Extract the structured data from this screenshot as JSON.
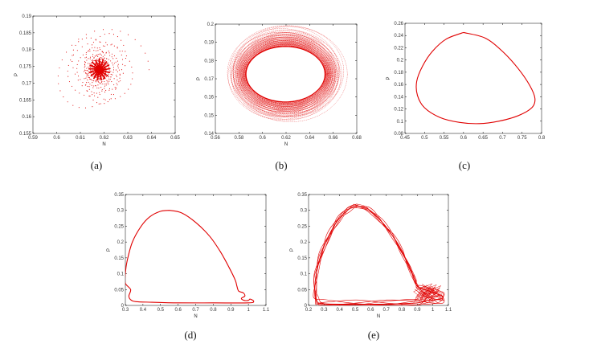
{
  "chart_data": [
    {
      "id": "a",
      "caption": "(a)",
      "type": "scatter",
      "description": "",
      "xlabel": "N",
      "ylabel": "P",
      "xlim": [
        0.59,
        0.65
      ],
      "ylim": [
        0.155,
        0.19
      ],
      "xticks": [
        "0.59",
        "0.6",
        "0.61",
        "0.62",
        "0.63",
        "0.64",
        "0.65"
      ],
      "yticks": [
        "0.155",
        "0.16",
        "0.165",
        "0.17",
        "0.175",
        "0.18",
        "0.185",
        "0.19"
      ],
      "color": "#e00000",
      "spiral": {
        "center": [
          0.618,
          0.174
        ],
        "a_start": 0.021,
        "b_start": 0.0124,
        "decay": 0.023,
        "turns": 26,
        "points_per_turn": 36
      }
    },
    {
      "id": "b",
      "caption": "(b)",
      "type": "line",
      "xlabel": "N",
      "ylabel": "P",
      "xlim": [
        0.56,
        0.68
      ],
      "ylim": [
        0.14,
        0.2
      ],
      "xticks": [
        "0.56",
        "0.58",
        "0.6",
        "0.62",
        "0.64",
        "0.66",
        "0.68"
      ],
      "yticks": [
        "0.14",
        "0.15",
        "0.16",
        "0.17",
        "0.18",
        "0.19",
        "0.2"
      ],
      "color": "#e00000",
      "limit_cycle": {
        "center": [
          0.6195,
          0.1725
        ],
        "a": 0.0335,
        "b": 0.0152
      },
      "outer": {
        "a": 0.0485,
        "b": 0.0262
      },
      "loops": 70
    },
    {
      "id": "c",
      "caption": "(c)",
      "type": "line",
      "xlabel": "",
      "ylabel": "P",
      "xlim": [
        0.45,
        0.8
      ],
      "ylim": [
        0.08,
        0.26
      ],
      "xticks": [
        "0.45",
        "0.5",
        "0.55",
        "0.6",
        "0.65",
        "0.7",
        "0.75",
        "0.8"
      ],
      "yticks": [
        "0.08",
        "0.1",
        "0.12",
        "0.14",
        "0.16",
        "0.18",
        "0.2",
        "0.22",
        "0.24",
        "0.26"
      ],
      "color": "#e00000",
      "curve": [
        [
          0.6,
          0.245
        ],
        [
          0.655,
          0.236
        ],
        [
          0.7,
          0.214
        ],
        [
          0.74,
          0.186
        ],
        [
          0.77,
          0.158
        ],
        [
          0.783,
          0.137
        ],
        [
          0.775,
          0.122
        ],
        [
          0.74,
          0.109
        ],
        [
          0.69,
          0.1
        ],
        [
          0.64,
          0.096
        ],
        [
          0.59,
          0.098
        ],
        [
          0.54,
          0.106
        ],
        [
          0.5,
          0.122
        ],
        [
          0.482,
          0.142
        ],
        [
          0.48,
          0.165
        ],
        [
          0.495,
          0.19
        ],
        [
          0.52,
          0.214
        ],
        [
          0.555,
          0.234
        ],
        [
          0.6,
          0.245
        ]
      ]
    },
    {
      "id": "d",
      "caption": "(d)",
      "type": "line",
      "xlabel": "N",
      "ylabel": "P",
      "xlim": [
        0.3,
        1.1
      ],
      "ylim": [
        0,
        0.35
      ],
      "xticks": [
        "0.3",
        "0.4",
        "0.5",
        "0.6",
        "0.7",
        "0.8",
        "0.9",
        "1",
        "1.1"
      ],
      "yticks": [
        "0",
        "0.05",
        "0.1",
        "0.15",
        "0.2",
        "0.25",
        "0.3",
        "0.35"
      ],
      "color": "#e00000",
      "curve": [
        [
          0.55,
          0.3
        ],
        [
          0.62,
          0.292
        ],
        [
          0.7,
          0.262
        ],
        [
          0.78,
          0.218
        ],
        [
          0.84,
          0.17
        ],
        [
          0.89,
          0.12
        ],
        [
          0.925,
          0.08
        ],
        [
          0.935,
          0.06
        ],
        [
          0.945,
          0.045
        ],
        [
          0.97,
          0.04
        ],
        [
          0.98,
          0.03
        ],
        [
          0.96,
          0.022
        ],
        [
          0.975,
          0.016
        ],
        [
          1.0,
          0.016
        ],
        [
          1.01,
          0.02
        ],
        [
          1.03,
          0.013
        ],
        [
          1.0,
          0.008
        ],
        [
          0.8,
          0.008
        ],
        [
          0.6,
          0.008
        ],
        [
          0.45,
          0.01
        ],
        [
          0.36,
          0.012
        ],
        [
          0.33,
          0.018
        ],
        [
          0.32,
          0.03
        ],
        [
          0.33,
          0.05
        ],
        [
          0.3,
          0.07
        ],
        [
          0.3,
          0.1
        ],
        [
          0.31,
          0.14
        ],
        [
          0.34,
          0.2
        ],
        [
          0.39,
          0.25
        ],
        [
          0.44,
          0.28
        ],
        [
          0.5,
          0.297
        ],
        [
          0.55,
          0.3
        ]
      ]
    },
    {
      "id": "e",
      "caption": "(e)",
      "type": "line",
      "xlabel": "N",
      "ylabel": "P",
      "xlim": [
        0.2,
        1.1
      ],
      "ylim": [
        0,
        0.35
      ],
      "xticks": [
        "0.2",
        "0.3",
        "0.4",
        "0.5",
        "0.6",
        "0.7",
        "0.8",
        "0.9",
        "1",
        "1.1"
      ],
      "yticks": [
        "0",
        "0.05",
        "0.1",
        "0.15",
        "0.2",
        "0.25",
        "0.3",
        "0.35"
      ],
      "color": "#e00000",
      "curve": [
        [
          0.5,
          0.315
        ],
        [
          0.58,
          0.305
        ],
        [
          0.66,
          0.27
        ],
        [
          0.74,
          0.22
        ],
        [
          0.8,
          0.17
        ],
        [
          0.85,
          0.12
        ],
        [
          0.88,
          0.085
        ],
        [
          0.9,
          0.06
        ],
        [
          0.95,
          0.05
        ],
        [
          1.0,
          0.04
        ],
        [
          1.06,
          0.03
        ],
        [
          1.05,
          0.02
        ],
        [
          0.95,
          0.015
        ],
        [
          0.9,
          0.008
        ],
        [
          0.7,
          0.004
        ],
        [
          0.5,
          0.004
        ],
        [
          0.3,
          0.005
        ],
        [
          0.25,
          0.015
        ],
        [
          0.24,
          0.05
        ],
        [
          0.25,
          0.1
        ],
        [
          0.28,
          0.16
        ],
        [
          0.33,
          0.22
        ],
        [
          0.39,
          0.27
        ],
        [
          0.45,
          0.3
        ],
        [
          0.5,
          0.315
        ]
      ],
      "variants": 6
    }
  ]
}
